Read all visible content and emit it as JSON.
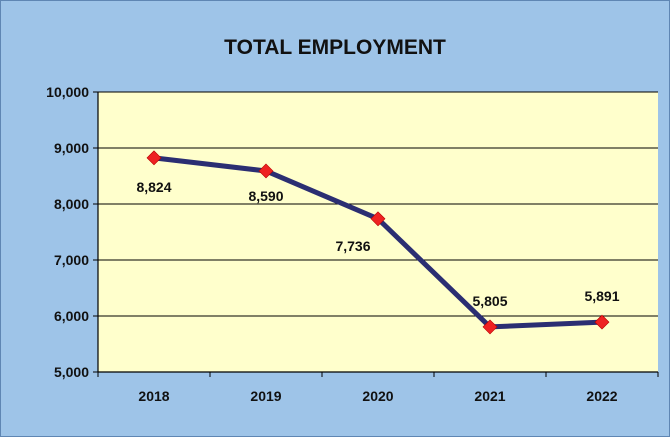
{
  "chart_data": {
    "type": "line",
    "title": "TOTAL EMPLOYMENT",
    "xlabel": "",
    "ylabel": "",
    "categories": [
      "2018",
      "2019",
      "2020",
      "2021",
      "2022"
    ],
    "series": [
      {
        "values": [
          8824,
          8590,
          7736,
          5805,
          5891
        ]
      }
    ],
    "data_labels": [
      "8,824",
      "8,590",
      "7,736",
      "5,805",
      "5,891"
    ],
    "ylim": [
      5000,
      10000
    ],
    "y_ticks": [
      5000,
      6000,
      7000,
      8000,
      9000,
      10000
    ],
    "y_tick_labels": [
      "5,000",
      "6,000",
      "7,000",
      "8,000",
      "9,000",
      "10,000"
    ],
    "grid": true,
    "legend": "none",
    "colors": {
      "background": "#9ec4e8",
      "plot_area": "#ffffcc",
      "line": "#2b2e72",
      "marker": "#ee2222",
      "grid": "#000000"
    }
  }
}
